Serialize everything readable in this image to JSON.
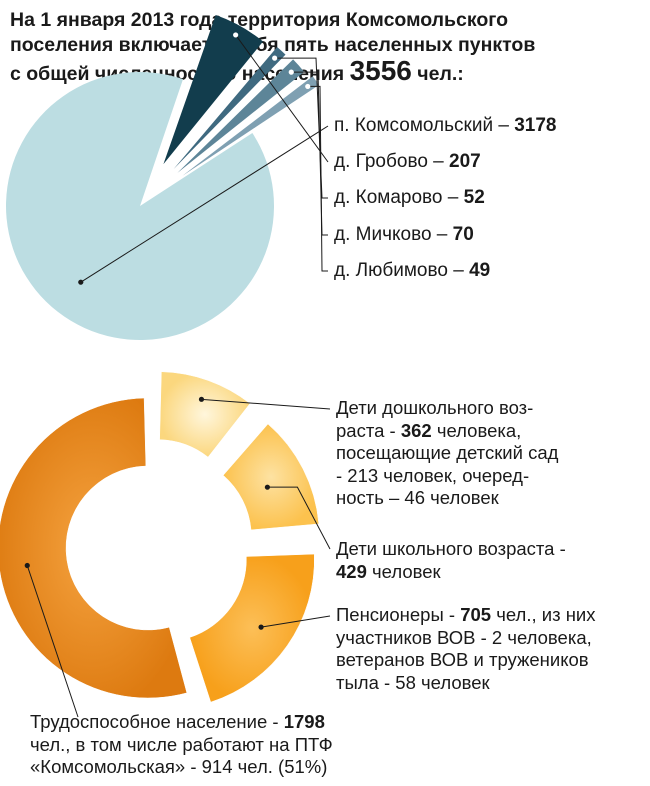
{
  "title": {
    "line1": "На 1 января 2013 года территория  Комсомольского",
    "line2": "поселения включает в себя пять населенных пунктов",
    "line3_prefix": "с общей численностью населения ",
    "total": "3556",
    "line3_suffix": " чел.:"
  },
  "chart_data": [
    {
      "type": "pie",
      "title": "",
      "categories": [
        "п. Комсомольский",
        "д. Гробово",
        "д. Комарово",
        "д. Мичково",
        "д. Любимово"
      ],
      "values": [
        3178,
        207,
        52,
        70,
        49
      ],
      "colors": [
        "#bcdde2",
        "#123d4d",
        "#3f6a80",
        "#5d8598",
        "#7fa0b2"
      ],
      "labels": [
        {
          "name": "п. Комсомольский – ",
          "value": "3178"
        },
        {
          "name": "д. Гробово – ",
          "value": "207"
        },
        {
          "name": "д. Комарово – ",
          "value": "52"
        },
        {
          "name": "д. Мичково – ",
          "value": "70"
        },
        {
          "name": "д. Любимово – ",
          "value": "49"
        }
      ]
    },
    {
      "type": "donut",
      "title": "",
      "categories": [
        "Дети дошкольного возраста",
        "Дети школьного возраста",
        "Пенсионеры",
        "Трудоспособное население"
      ],
      "values": [
        362,
        429,
        705,
        1798
      ],
      "colors": [
        "#fbd77e",
        "#fcc24e",
        "#f9a21e",
        "#e88615"
      ],
      "annotations": [
        {
          "l1": "Дети дошкольного  воз-",
          "l2a": "раста  - ",
          "l2b": "362",
          "l2c": " человека,",
          "l3": "посещающие детский сад",
          "l4": "- 213 человек, очеред-",
          "l5": "ность – 46 человек"
        },
        {
          "l1": "Дети школьного возраста -",
          "l2b": "429",
          "l2c": " человек"
        },
        {
          "l1a": "Пенсионеры -  ",
          "l1b": "705",
          "l1c": " чел., из них",
          "l2": "участников ВОВ - 2 человека,",
          "l3": "ветеранов ВОВ и тружеников",
          "l4": "тыла - 58 человек"
        },
        {
          "l1a": "Трудоспособное население - ",
          "l1b": "1798",
          "l2": "чел., в том числе работают на ПТФ",
          "l3": "«Комсомольская» - 914 чел.  (51%)"
        }
      ]
    }
  ]
}
